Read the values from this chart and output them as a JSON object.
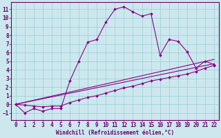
{
  "bg_color": "#cce8ee",
  "grid_color": "#99ccd4",
  "line_color": "#880088",
  "axis_color": "#660066",
  "xlim": [
    -0.5,
    22.5
  ],
  "ylim": [
    -1.8,
    11.8
  ],
  "xticks": [
    0,
    1,
    2,
    3,
    4,
    5,
    6,
    7,
    8,
    9,
    10,
    11,
    12,
    13,
    14,
    15,
    16,
    17,
    18,
    19,
    20,
    21,
    22
  ],
  "yticks": [
    -1,
    0,
    1,
    2,
    3,
    4,
    5,
    6,
    7,
    8,
    9,
    10,
    11
  ],
  "xlabel": "Windchill (Refroidissement éolien,°C)",
  "line1_x": [
    0,
    1,
    2,
    3,
    4,
    5,
    6,
    7,
    8,
    9,
    10,
    11,
    12,
    13,
    14,
    15,
    16,
    17,
    18,
    19,
    20,
    21,
    22
  ],
  "line1_y": [
    0,
    -1,
    -0.5,
    -0.8,
    -0.5,
    -0.5,
    2.7,
    5.0,
    7.2,
    7.5,
    9.5,
    11.0,
    11.3,
    10.7,
    10.2,
    10.5,
    5.7,
    7.5,
    7.3,
    6.1,
    4.2,
    5.0,
    4.6
  ],
  "line2_x": [
    0,
    1,
    2,
    3,
    4,
    5,
    6,
    7,
    8,
    9,
    10,
    11,
    12,
    13,
    14,
    15,
    16,
    17,
    18,
    19,
    20,
    21,
    22
  ],
  "line2_y": [
    0,
    -0.1,
    -0.2,
    -0.3,
    -0.2,
    -0.2,
    0.2,
    0.5,
    0.8,
    1.0,
    1.3,
    1.6,
    1.9,
    2.1,
    2.4,
    2.7,
    2.9,
    3.1,
    3.3,
    3.5,
    3.8,
    4.2,
    4.5
  ],
  "line3_x": [
    0,
    22
  ],
  "line3_y": [
    0,
    4.7
  ],
  "line4_x": [
    0,
    22
  ],
  "line4_y": [
    0,
    5.2
  ],
  "tick_fontsize": 5.5,
  "xlabel_fontsize": 5.5
}
